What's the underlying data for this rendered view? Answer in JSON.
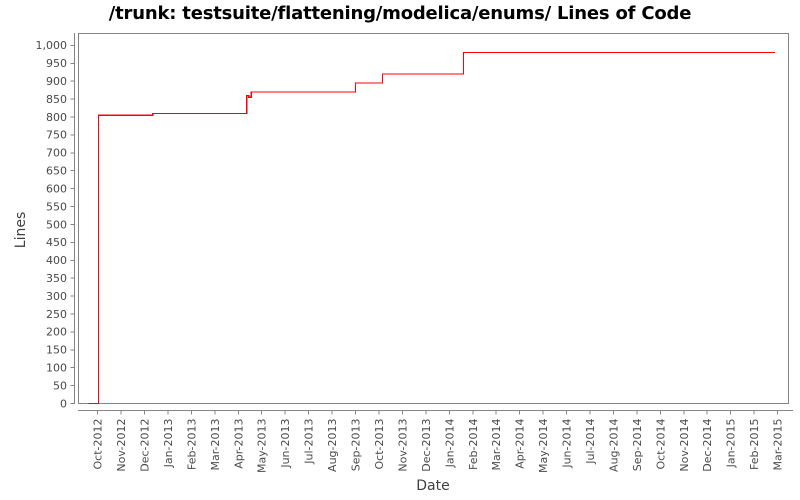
{
  "page": {
    "background": "#ffffff"
  },
  "chart_data": {
    "type": "line",
    "step": "after",
    "title": "/trunk: testsuite/flattening/modelica/enums/ Lines of Code",
    "xlabel": "Date",
    "ylabel": "Lines",
    "ylim": [
      0,
      1000
    ],
    "grid": false,
    "legend": "none",
    "y_tick_values": [
      0,
      50,
      100,
      150,
      200,
      250,
      300,
      350,
      400,
      450,
      500,
      550,
      600,
      650,
      700,
      750,
      800,
      850,
      900,
      950,
      1000
    ],
    "y_tick_labels": [
      "0",
      "50",
      "100",
      "150",
      "200",
      "250",
      "300",
      "350",
      "400",
      "450",
      "500",
      "550",
      "600",
      "650",
      "700",
      "750",
      "800",
      "850",
      "900",
      "950",
      "1,000"
    ],
    "x_tick_labels": [
      "Oct-2012",
      "Nov-2012",
      "Dec-2012",
      "Jan-2013",
      "Feb-2013",
      "Mar-2013",
      "Apr-2013",
      "May-2013",
      "Jun-2013",
      "Jul-2013",
      "Aug-2013",
      "Sep-2013",
      "Oct-2013",
      "Nov-2013",
      "Dec-2013",
      "Jan-2014",
      "Feb-2014",
      "Mar-2014",
      "Apr-2014",
      "May-2014",
      "Jun-2014",
      "Jul-2014",
      "Aug-2014",
      "Sep-2014",
      "Oct-2014",
      "Nov-2014",
      "Dec-2014",
      "Jan-2015",
      "Feb-2015",
      "Mar-2015"
    ],
    "x_unit": "months relative to Oct-2012 tick",
    "colors": {
      "series": "#ff0000",
      "axis": "#848484",
      "tick_label": "#4a4a4a",
      "title": "#000000"
    },
    "series": [
      {
        "name": "Lines of Code",
        "points": [
          [
            -0.38,
            0
          ],
          [
            0.04,
            805
          ],
          [
            2.35,
            810
          ],
          [
            6.36,
            860
          ],
          [
            6.45,
            855
          ],
          [
            6.55,
            870
          ],
          [
            11.0,
            895
          ],
          [
            12.15,
            920
          ],
          [
            15.6,
            980
          ],
          [
            28.9,
            980
          ]
        ]
      }
    ]
  }
}
